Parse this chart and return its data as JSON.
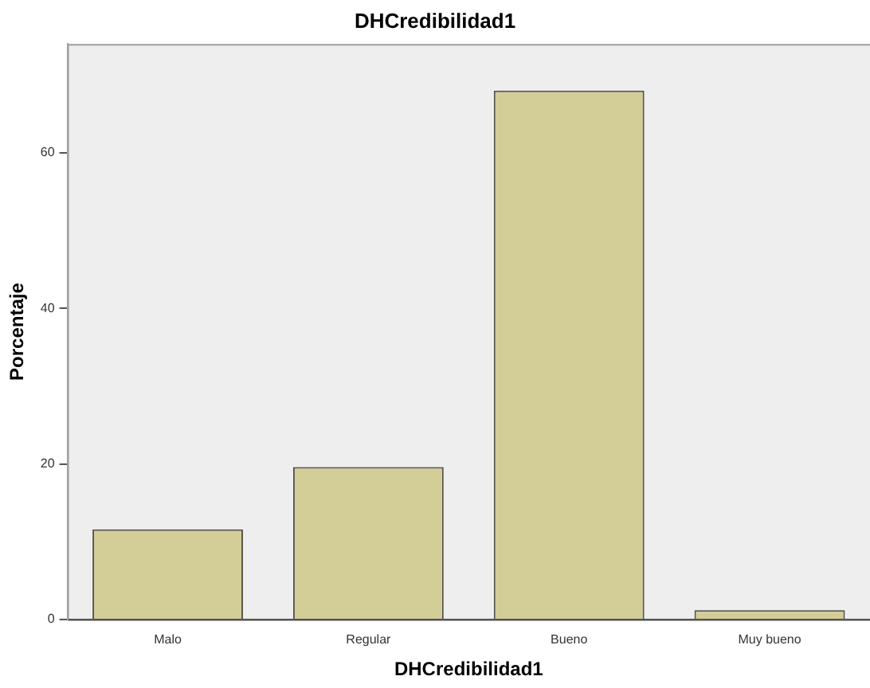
{
  "chart_data": {
    "type": "bar",
    "title": "DHCredibilidad1",
    "xlabel": "DHCredibilidad1",
    "ylabel": "Porcentaje",
    "categories": [
      "Malo",
      "Regular",
      "Bueno",
      "Muy bueno"
    ],
    "values": [
      11.6,
      19.6,
      68.0,
      1.2
    ],
    "color": "#d3cd97",
    "ylim": [
      0,
      74
    ],
    "yticks": [
      0,
      20,
      40,
      60
    ],
    "grid": false,
    "legend": false
  }
}
